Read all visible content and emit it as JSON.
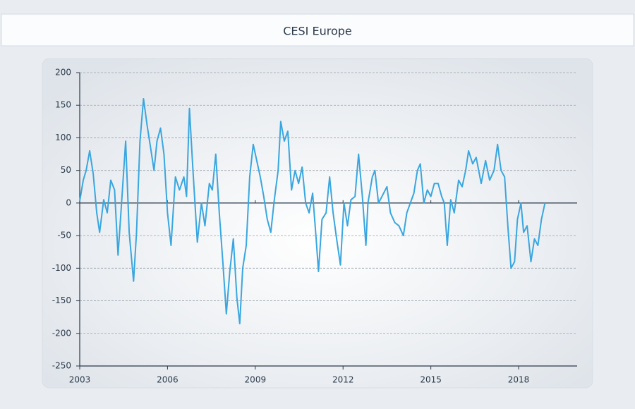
{
  "chart_data": {
    "type": "line",
    "title": "CESI Europe",
    "x": [
      2003.0,
      2003.12,
      2003.22,
      2003.34,
      2003.46,
      2003.58,
      2003.68,
      2003.82,
      2003.94,
      2004.06,
      2004.19,
      2004.31,
      2004.43,
      2004.57,
      2004.69,
      2004.84,
      2004.94,
      2005.06,
      2005.18,
      2005.3,
      2005.42,
      2005.54,
      2005.64,
      2005.76,
      2005.88,
      2006.0,
      2006.12,
      2006.27,
      2006.41,
      2006.56,
      2006.65,
      2006.75,
      2006.87,
      2007.02,
      2007.16,
      2007.28,
      2007.43,
      2007.53,
      2007.65,
      2007.77,
      2007.89,
      2008.01,
      2008.13,
      2008.25,
      2008.37,
      2008.47,
      2008.57,
      2008.69,
      2008.81,
      2008.93,
      2009.05,
      2009.17,
      2009.29,
      2009.41,
      2009.53,
      2009.65,
      2009.78,
      2009.87,
      2009.99,
      2010.11,
      2010.24,
      2010.36,
      2010.48,
      2010.6,
      2010.72,
      2010.84,
      2010.96,
      2011.08,
      2011.16,
      2011.28,
      2011.42,
      2011.54,
      2011.66,
      2011.78,
      2011.91,
      2012.03,
      2012.15,
      2012.27,
      2012.41,
      2012.53,
      2012.66,
      2012.78,
      2012.85,
      2013.0,
      2013.09,
      2013.21,
      2013.33,
      2013.5,
      2013.62,
      2013.77,
      2013.91,
      2014.06,
      2014.18,
      2014.3,
      2014.42,
      2014.54,
      2014.64,
      2014.76,
      2014.88,
      2015.0,
      2015.12,
      2015.25,
      2015.37,
      2015.46,
      2015.56,
      2015.68,
      2015.8,
      2015.95,
      2016.07,
      2016.19,
      2016.29,
      2016.43,
      2016.55,
      2016.72,
      2016.87,
      2017.01,
      2017.16,
      2017.28,
      2017.4,
      2017.52,
      2017.64,
      2017.74,
      2017.86,
      2017.96,
      2018.08,
      2018.17,
      2018.29,
      2018.42,
      2018.54,
      2018.66,
      2018.78,
      2018.9
    ],
    "values": [
      3,
      35,
      50,
      80,
      45,
      -15,
      -45,
      5,
      -15,
      35,
      20,
      -80,
      0,
      95,
      -45,
      -120,
      -45,
      95,
      160,
      120,
      85,
      50,
      95,
      115,
      75,
      -15,
      -65,
      40,
      20,
      40,
      10,
      145,
      50,
      -60,
      0,
      -35,
      30,
      20,
      75,
      -15,
      -90,
      -170,
      -105,
      -55,
      -145,
      -185,
      -100,
      -65,
      40,
      90,
      65,
      40,
      10,
      -25,
      -45,
      5,
      50,
      125,
      95,
      110,
      20,
      50,
      30,
      55,
      0,
      -15,
      15,
      -55,
      -105,
      -25,
      -15,
      40,
      -15,
      -55,
      -95,
      0,
      -35,
      5,
      10,
      75,
      10,
      -65,
      0,
      40,
      50,
      0,
      10,
      25,
      -15,
      -30,
      -35,
      -50,
      -15,
      0,
      15,
      50,
      60,
      0,
      20,
      10,
      30,
      30,
      10,
      0,
      -65,
      5,
      -15,
      35,
      25,
      50,
      80,
      60,
      70,
      30,
      65,
      35,
      50,
      90,
      50,
      40,
      -40,
      -100,
      -90,
      -25,
      0,
      -45,
      -35,
      -90,
      -55,
      -65,
      -25,
      0
    ],
    "color": "#3aa6df",
    "xlim": [
      2003,
      2020
    ],
    "xticks": [
      2003,
      2006,
      2009,
      2012,
      2015,
      2018
    ],
    "ylim": [
      -250,
      200
    ],
    "yticks": [
      -250,
      -200,
      -150,
      -100,
      -50,
      0,
      50,
      100,
      150,
      200
    ],
    "grid": true
  }
}
